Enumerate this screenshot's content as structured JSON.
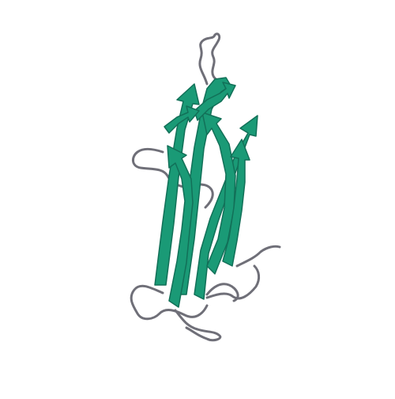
{
  "image": {
    "kind": "protein-ribbon-diagram",
    "representation": "cartoon",
    "background_color": "#ffffff",
    "colors": {
      "beta_strand": "#1a9a76",
      "beta_strand_shade": "#127058",
      "loop_coil": "#6f6f78"
    },
    "secondary_structure": [
      "beta-sheet",
      "coil-loops"
    ]
  }
}
